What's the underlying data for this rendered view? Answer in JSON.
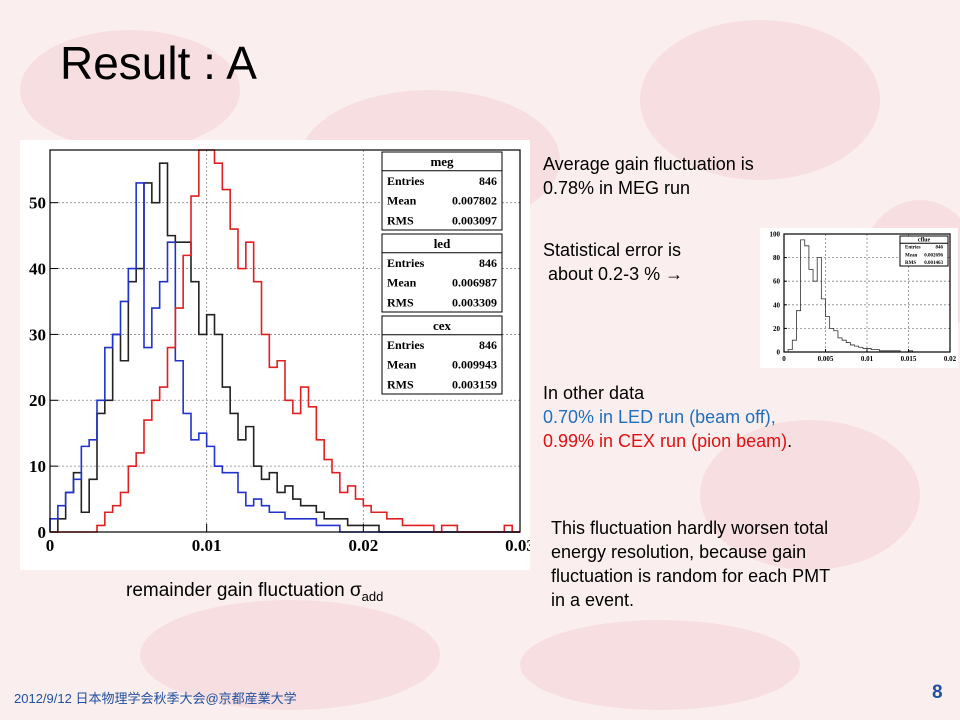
{
  "slide": {
    "title": "Result : A",
    "footer": "2012/9/12 日本物理学会秋季大会@京都産業大学",
    "page_number": "8"
  },
  "text": {
    "avg_line1": "Average gain fluctuation is",
    "avg_line2": "0.78% in MEG run",
    "stat_line1": "Statistical error is",
    "stat_line2": " about 0.2-3 % →",
    "other_head": "In other data",
    "other_led": "0.70% in LED run (beam off),",
    "other_cex": "0.99% in CEX run (pion beam)",
    "other_end": ".",
    "note": [
      "This fluctuation hardly worsen total",
      "energy resolution, because gain",
      "fluctuation is random for each PMT",
      "in a event."
    ],
    "xaxis_main": "remainder gain fluctuation σ",
    "xaxis_sub": "add"
  },
  "chart_data": [
    {
      "type": "bar",
      "xlim": [
        0,
        0.03
      ],
      "ylim": [
        0,
        58
      ],
      "xticks": [
        "0",
        "0.01",
        "0.02",
        "0.03"
      ],
      "yticks": [
        "0",
        "10",
        "20",
        "30",
        "40",
        "50"
      ],
      "grid": true,
      "bins": 60,
      "series": [
        {
          "name": "meg",
          "color": "#222222",
          "values": [
            0,
            2,
            6,
            9,
            3,
            8,
            18,
            20,
            30,
            26,
            38,
            40,
            53,
            50,
            56,
            45,
            44,
            44,
            38,
            30,
            33,
            30,
            22,
            18,
            14,
            16,
            10,
            8,
            9,
            6,
            7,
            5,
            4,
            4,
            3,
            2,
            2,
            2,
            1,
            1,
            1,
            1,
            0,
            0,
            0,
            0,
            0,
            0,
            0,
            0,
            0,
            0,
            0,
            0,
            0,
            0,
            0,
            0,
            0,
            0
          ]
        },
        {
          "name": "led",
          "color": "#2233cc",
          "values": [
            2,
            4,
            6,
            8,
            13,
            14,
            20,
            28,
            30,
            35,
            40,
            53,
            28,
            34,
            38,
            44,
            26,
            18,
            14,
            15,
            13,
            10,
            9,
            9,
            6,
            4,
            5,
            4,
            3,
            3,
            2,
            2,
            2,
            2,
            1,
            1,
            1,
            0,
            0,
            0,
            0,
            0,
            0,
            0,
            0,
            0,
            0,
            0,
            0,
            0,
            0,
            0,
            0,
            0,
            0,
            0,
            0,
            0,
            0,
            0
          ]
        },
        {
          "name": "cex",
          "color": "#e02020",
          "values": [
            0,
            0,
            0,
            0,
            0,
            0,
            1,
            3,
            4,
            6,
            10,
            12,
            17,
            20,
            22,
            28,
            34,
            42,
            51,
            60,
            58,
            56,
            52,
            46,
            40,
            44,
            38,
            30,
            25,
            26,
            20,
            18,
            22,
            19,
            14,
            11,
            9,
            6,
            7,
            5,
            4,
            3,
            3,
            2,
            2,
            1,
            1,
            1,
            1,
            0,
            1,
            1,
            0,
            0,
            0,
            0,
            0,
            0,
            1,
            0
          ]
        }
      ],
      "stats": [
        {
          "name": "meg",
          "entries": "846",
          "mean": "0.007802",
          "rms": "0.003097"
        },
        {
          "name": "led",
          "entries": "846",
          "mean": "0.006987",
          "rms": "0.003309"
        },
        {
          "name": "cex",
          "entries": "846",
          "mean": "0.009943",
          "rms": "0.003159"
        }
      ],
      "stat_labels": {
        "entries": "Entries",
        "mean": "Mean",
        "rms": "RMS"
      }
    },
    {
      "type": "bar",
      "xlim": [
        0,
        0.02
      ],
      "ylim": [
        0,
        100
      ],
      "xticks": [
        "0",
        "0.005",
        "0.01",
        "0.015",
        "0.02"
      ],
      "yticks": [
        "0",
        "20",
        "40",
        "60",
        "80",
        "100"
      ],
      "grid": true,
      "series": [
        {
          "name": "cflue",
          "color": "#333333",
          "values": [
            0,
            2,
            10,
            35,
            95,
            90,
            70,
            60,
            80,
            45,
            30,
            20,
            18,
            12,
            10,
            8,
            6,
            5,
            4,
            3,
            3,
            2,
            2,
            1,
            1,
            1,
            1,
            1,
            0,
            0,
            1,
            0,
            0,
            0,
            0,
            0,
            0,
            0,
            0,
            0
          ]
        }
      ],
      "stats": [
        {
          "name": "cflue",
          "entries": "846",
          "mean": "0.002696",
          "rms": "0.001463"
        }
      ],
      "stat_labels": {
        "entries": "Entries",
        "mean": "Mean",
        "rms": "RMS"
      }
    }
  ]
}
